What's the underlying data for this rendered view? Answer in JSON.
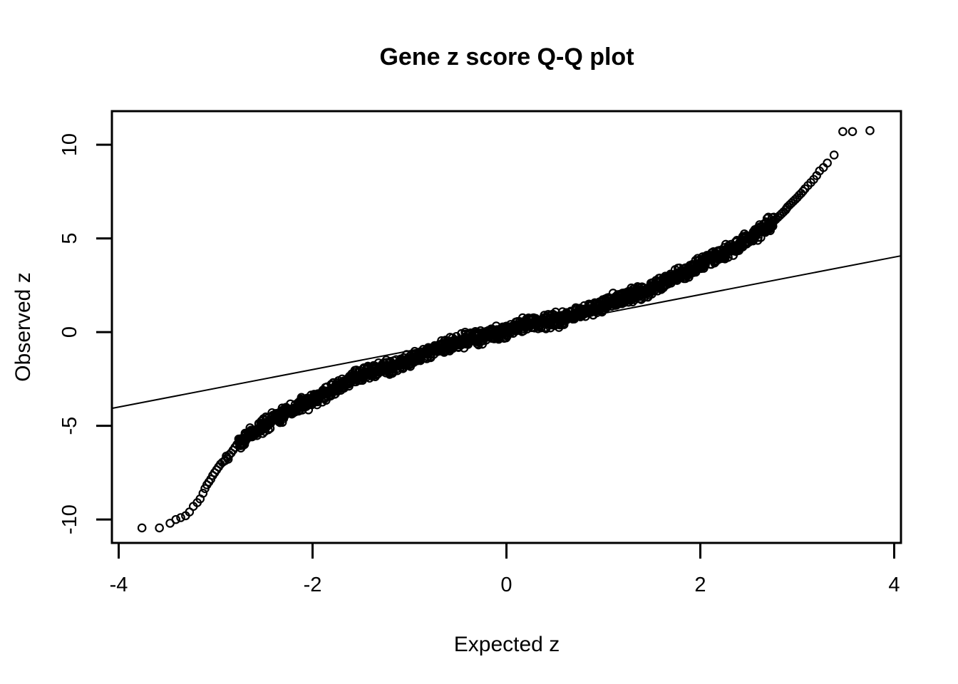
{
  "window": {
    "background_color": "#ffffff",
    "foreground_color": "#000000"
  },
  "chart_data": {
    "type": "scatter",
    "subtype": "qq-plot",
    "title": "Gene z score Q-Q plot",
    "xlabel": "Expected z",
    "ylabel": "Observed z",
    "xlim": [
      -4.07,
      4.07
    ],
    "ylim": [
      -11.25,
      11.79
    ],
    "xticks": [
      -4,
      -2,
      0,
      2,
      4
    ],
    "yticks": [
      -10,
      -5,
      0,
      5,
      10
    ],
    "xtick_labels": [
      "-4",
      "-2",
      "0",
      "2",
      "4"
    ],
    "ytick_labels": [
      "-10",
      "-5",
      "0",
      "5",
      "10"
    ],
    "grid": false,
    "legend": "none",
    "background": "#ffffff",
    "point_color": "#000000",
    "line_color": "#000000",
    "marker": {
      "shape": "open-circle",
      "radius_px": 5.2,
      "stroke_px": 2.2
    },
    "reference_line": {
      "slope": 1,
      "intercept": 0,
      "x_start": -4.07,
      "x_end": 4.07
    },
    "curve_anchors": [
      [
        -3.0,
        -7.2
      ],
      [
        -2.76,
        -5.85
      ],
      [
        -2.5,
        -5.0
      ],
      [
        -2.25,
        -4.3
      ],
      [
        -2.0,
        -3.55
      ],
      [
        -1.75,
        -2.95
      ],
      [
        -1.5,
        -2.38
      ],
      [
        -1.25,
        -1.88
      ],
      [
        -1.0,
        -1.42
      ],
      [
        -0.75,
        -1.0
      ],
      [
        -0.5,
        -0.55
      ],
      [
        -0.25,
        -0.18
      ],
      [
        0.0,
        0.1
      ],
      [
        0.25,
        0.4
      ],
      [
        0.5,
        0.66
      ],
      [
        0.75,
        1.02
      ],
      [
        1.0,
        1.42
      ],
      [
        1.25,
        1.88
      ],
      [
        1.5,
        2.38
      ],
      [
        1.75,
        2.95
      ],
      [
        2.0,
        3.55
      ],
      [
        2.25,
        4.3
      ],
      [
        2.5,
        5.0
      ],
      [
        2.76,
        5.86
      ],
      [
        3.0,
        7.1
      ]
    ],
    "band": {
      "x_min": -2.76,
      "x_max": 2.76,
      "n_points": 1500,
      "y_jitter": 0.45,
      "x_jitter": 0.02,
      "wobble_amp": 0.07,
      "seed": 42
    },
    "tail_points_negative": [
      [
        -3.76,
        -10.45
      ],
      [
        -3.58,
        -10.45
      ],
      [
        -3.47,
        -10.2
      ],
      [
        -3.41,
        -10.0
      ],
      [
        -3.36,
        -9.9
      ],
      [
        -3.31,
        -9.8
      ],
      [
        -3.27,
        -9.6
      ],
      [
        -3.23,
        -9.3
      ],
      [
        -3.19,
        -9.1
      ],
      [
        -3.16,
        -8.9
      ],
      [
        -3.13,
        -8.6
      ],
      [
        -3.11,
        -8.35
      ],
      [
        -3.09,
        -8.15
      ],
      [
        -3.07,
        -8.0
      ],
      [
        -3.05,
        -7.85
      ],
      [
        -3.03,
        -7.65
      ],
      [
        -3.01,
        -7.5
      ],
      [
        -2.99,
        -7.35
      ],
      [
        -2.97,
        -7.2
      ],
      [
        -2.95,
        -7.05
      ],
      [
        -2.93,
        -6.95
      ],
      [
        -2.91,
        -6.88
      ],
      [
        -2.9,
        -6.85
      ],
      [
        -2.89,
        -6.62
      ],
      [
        -2.88,
        -6.7
      ],
      [
        -2.87,
        -6.78
      ],
      [
        -2.86,
        -6.55
      ],
      [
        -2.84,
        -6.45
      ],
      [
        -2.82,
        -6.3
      ],
      [
        -2.8,
        -6.15
      ],
      [
        -2.78,
        -6.0
      ],
      [
        -2.76,
        -5.9
      ]
    ],
    "tail_points_positive": [
      [
        3.75,
        10.75
      ],
      [
        3.57,
        10.7
      ],
      [
        3.47,
        10.7
      ],
      [
        3.38,
        9.45
      ],
      [
        3.31,
        9.02
      ],
      [
        3.27,
        8.78
      ],
      [
        3.23,
        8.6
      ],
      [
        3.2,
        8.35
      ],
      [
        3.17,
        8.15
      ],
      [
        3.14,
        7.98
      ],
      [
        3.11,
        7.82
      ],
      [
        3.08,
        7.65
      ],
      [
        3.06,
        7.52
      ],
      [
        3.04,
        7.4
      ],
      [
        3.02,
        7.3
      ],
      [
        3.0,
        7.18
      ],
      [
        2.98,
        7.08
      ],
      [
        2.96,
        6.98
      ],
      [
        2.94,
        6.88
      ],
      [
        2.92,
        6.78
      ],
      [
        2.9,
        6.68
      ],
      [
        2.89,
        6.6
      ],
      [
        2.88,
        6.52
      ],
      [
        2.86,
        6.42
      ],
      [
        2.84,
        6.32
      ],
      [
        2.82,
        6.22
      ],
      [
        2.8,
        6.12
      ],
      [
        2.78,
        6.02
      ]
    ]
  }
}
